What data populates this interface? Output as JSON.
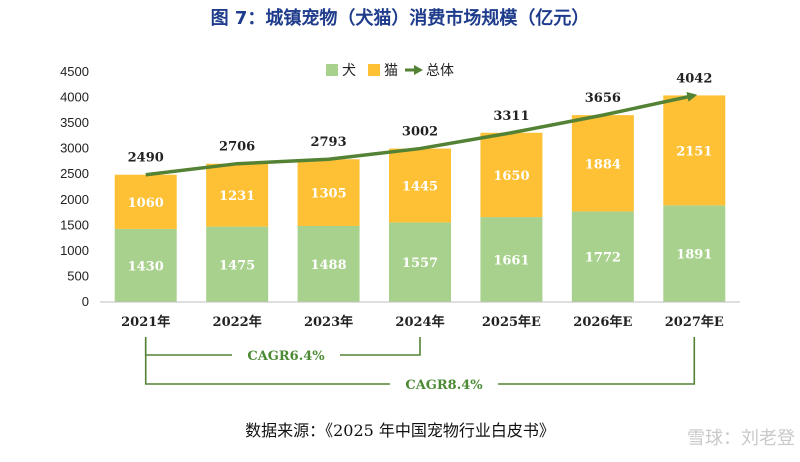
{
  "colors": {
    "dog": "#a9d18e",
    "cat": "#fec035",
    "total_line": "#548235",
    "title": "#1f3c8c",
    "cagr": "#4c8a35",
    "axis": "#bfbfbf",
    "watermark": "#c9c9c9"
  },
  "chart_data": {
    "type": "bar",
    "stacked": true,
    "title": "图 7：城镇宠物（犬猫）消费市场规模（亿元）",
    "categories": [
      "2021年",
      "2022年",
      "2023年",
      "2024年",
      "2025年E",
      "2026年E",
      "2027年E"
    ],
    "series": [
      {
        "name": "犬",
        "values": [
          1430,
          1475,
          1488,
          1557,
          1661,
          1772,
          1891
        ]
      },
      {
        "name": "猫",
        "values": [
          1060,
          1231,
          1305,
          1445,
          1650,
          1884,
          2151
        ]
      }
    ],
    "line": {
      "name": "总体",
      "values": [
        2490,
        2706,
        2793,
        3002,
        3311,
        3656,
        4042
      ]
    },
    "legend": [
      "犬",
      "猫",
      "总体"
    ],
    "legend_position": "top-center",
    "ylim": [
      0,
      4500
    ],
    "yticks": [
      0,
      500,
      1000,
      1500,
      2000,
      2500,
      3000,
      3500,
      4000,
      4500
    ],
    "annotations": [
      {
        "text": "CAGR6.4%",
        "from": "2021年",
        "to": "2024年"
      },
      {
        "text": "CAGR8.4%",
        "from": "2021年",
        "to": "2027年E"
      }
    ]
  },
  "source": "数据来源：《2025 年中国宠物行业白皮书》",
  "watermark": "雪球：刘老登"
}
